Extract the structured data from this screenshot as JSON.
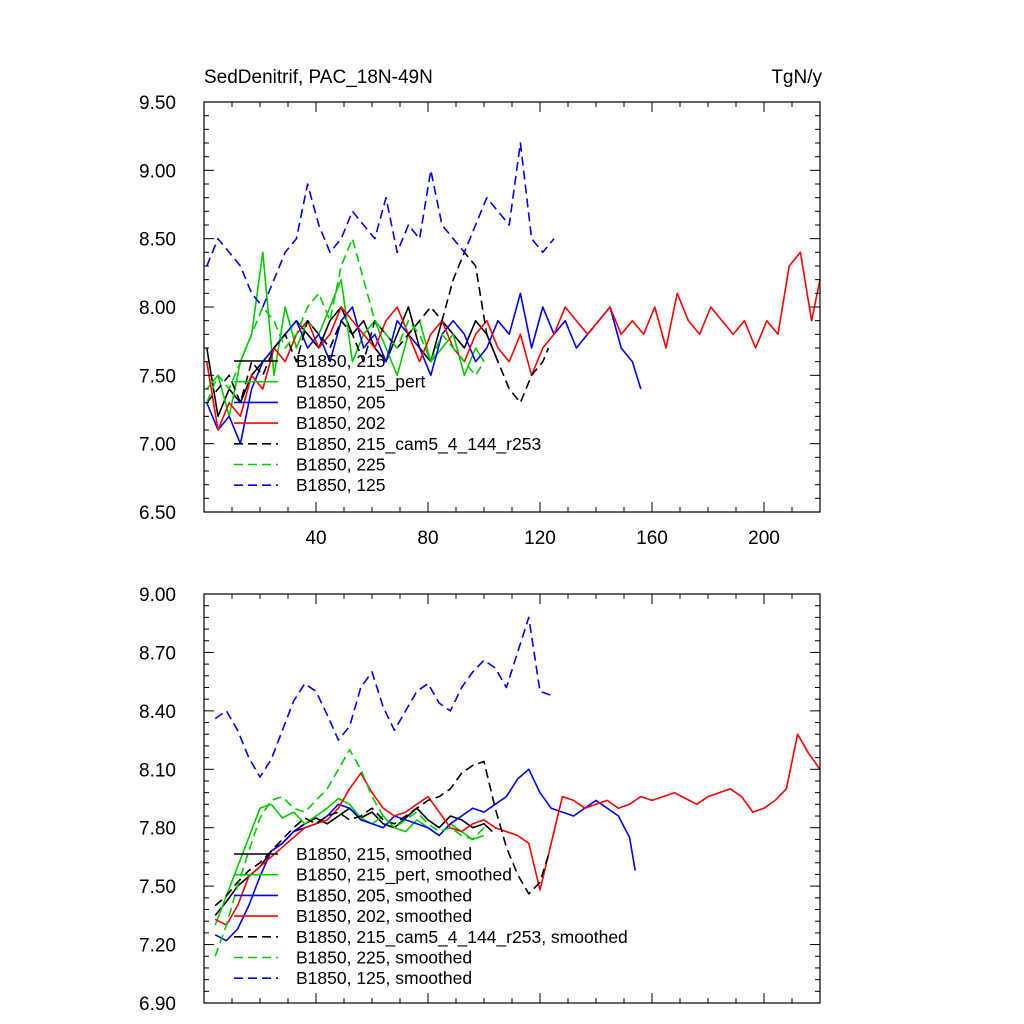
{
  "chart_data": [
    {
      "type": "line",
      "title_left": "SedDenitrif, PAC_18N-49N",
      "title_right": "TgN/y",
      "xlim": [
        0,
        220
      ],
      "ylim": [
        6.5,
        9.5
      ],
      "xticks": [
        40,
        80,
        120,
        160,
        200
      ],
      "xtick_labels": [
        "40",
        "80",
        "120",
        "160",
        "200"
      ],
      "yticks": [
        6.5,
        7.0,
        7.5,
        8.0,
        8.5,
        9.0,
        9.5
      ],
      "ytick_labels": [
        "6.50",
        "7.00",
        "7.50",
        "8.00",
        "8.50",
        "9.00",
        "9.50"
      ],
      "legend_placement": "lower-left",
      "series": [
        {
          "name": "B1850, 215",
          "color": "#000000",
          "dash": "solid",
          "x": [
            1,
            5,
            9,
            13,
            17,
            21,
            25,
            29,
            33,
            37,
            41,
            45,
            49,
            53,
            57,
            61,
            65,
            69,
            73,
            77,
            81,
            85,
            89,
            93,
            97,
            101,
            105
          ],
          "y": [
            7.7,
            7.2,
            7.4,
            7.3,
            7.5,
            7.6,
            7.7,
            7.8,
            7.9,
            7.8,
            7.7,
            7.9,
            8.0,
            7.8,
            7.9,
            7.7,
            7.6,
            7.8,
            8.0,
            7.7,
            7.6,
            7.9,
            7.8,
            7.7,
            7.9,
            7.8,
            7.6
          ]
        },
        {
          "name": "B1850, 215_pert",
          "color": "#00cc00",
          "dash": "solid",
          "x": [
            1,
            5,
            9,
            13,
            17,
            21,
            25,
            29,
            33,
            37,
            41,
            45,
            49,
            53,
            57,
            61,
            65,
            69,
            73,
            77,
            81,
            85,
            89,
            93,
            97,
            100
          ],
          "y": [
            7.4,
            7.5,
            7.2,
            7.6,
            7.8,
            8.4,
            7.5,
            8.0,
            7.7,
            7.9,
            7.8,
            8.0,
            8.2,
            7.6,
            7.8,
            7.9,
            7.7,
            7.5,
            7.8,
            7.9,
            7.6,
            7.7,
            7.8,
            7.5,
            7.7,
            7.6
          ]
        },
        {
          "name": "B1850, 205",
          "color": "#0000ff",
          "dash": "solid",
          "x": [
            1,
            5,
            9,
            13,
            17,
            21,
            25,
            29,
            33,
            37,
            41,
            45,
            49,
            53,
            57,
            61,
            65,
            69,
            73,
            77,
            81,
            85,
            89,
            93,
            97,
            101,
            105,
            109,
            113,
            117,
            121,
            125,
            129,
            133,
            137,
            141,
            145,
            149,
            153,
            156
          ],
          "y": [
            7.3,
            7.1,
            7.2,
            7.0,
            7.4,
            7.6,
            7.7,
            7.8,
            7.9,
            7.7,
            7.8,
            7.6,
            7.9,
            8.0,
            7.7,
            7.8,
            7.6,
            7.9,
            7.8,
            7.7,
            7.5,
            7.8,
            7.9,
            7.8,
            7.6,
            7.7,
            7.9,
            7.8,
            8.1,
            7.7,
            8.0,
            7.8,
            7.9,
            7.7,
            7.8,
            7.9,
            8.0,
            7.7,
            7.6,
            7.4
          ]
        },
        {
          "name": "B1850, 202",
          "color": "#ff0000",
          "dash": "solid",
          "x": [
            1,
            5,
            9,
            13,
            17,
            21,
            25,
            29,
            33,
            37,
            41,
            45,
            49,
            53,
            57,
            61,
            65,
            69,
            73,
            77,
            81,
            85,
            89,
            93,
            97,
            101,
            105,
            109,
            113,
            117,
            121,
            125,
            129,
            133,
            137,
            141,
            145,
            149,
            153,
            157,
            161,
            165,
            169,
            173,
            177,
            181,
            185,
            189,
            193,
            197,
            201,
            205,
            209,
            213,
            217,
            220
          ],
          "y": [
            7.6,
            7.1,
            7.3,
            7.2,
            7.5,
            7.4,
            7.7,
            7.6,
            7.8,
            7.9,
            7.7,
            7.8,
            8.0,
            7.9,
            7.8,
            7.7,
            7.9,
            8.0,
            7.8,
            7.6,
            7.8,
            7.9,
            7.7,
            7.6,
            7.8,
            7.9,
            7.7,
            7.6,
            7.8,
            7.5,
            7.7,
            7.8,
            8.0,
            7.9,
            7.8,
            7.9,
            8.0,
            7.8,
            7.9,
            7.8,
            8.0,
            7.7,
            8.1,
            7.9,
            7.8,
            8.0,
            7.9,
            7.8,
            7.9,
            7.7,
            7.9,
            7.8,
            8.3,
            8.4,
            7.9,
            8.2
          ]
        },
        {
          "name": "B1850, 215_cam5_4_144_r253",
          "color": "#000000",
          "dash": "dashed",
          "x": [
            1,
            5,
            9,
            13,
            17,
            21,
            25,
            29,
            33,
            37,
            41,
            45,
            49,
            53,
            57,
            61,
            65,
            69,
            73,
            77,
            81,
            85,
            89,
            93,
            97,
            101,
            105,
            109,
            113,
            117,
            121,
            123
          ],
          "y": [
            7.3,
            7.4,
            7.5,
            7.3,
            7.6,
            7.5,
            7.7,
            7.8,
            7.6,
            7.9,
            7.8,
            7.7,
            7.9,
            7.8,
            7.6,
            7.9,
            7.8,
            7.7,
            7.8,
            7.9,
            8.0,
            7.9,
            8.2,
            8.4,
            8.3,
            7.8,
            7.6,
            7.4,
            7.3,
            7.5,
            7.6,
            7.7
          ]
        },
        {
          "name": "B1850, 225",
          "color": "#00cc00",
          "dash": "dashed",
          "x": [
            1,
            5,
            9,
            13,
            17,
            21,
            25,
            29,
            33,
            37,
            41,
            45,
            49,
            53,
            57,
            61,
            65,
            69,
            73,
            77,
            81,
            85,
            89,
            93,
            97,
            100
          ],
          "y": [
            7.3,
            7.5,
            7.4,
            7.6,
            7.8,
            8.0,
            7.9,
            7.7,
            7.8,
            8.0,
            8.1,
            7.9,
            8.3,
            8.5,
            8.2,
            7.9,
            7.8,
            7.7,
            7.9,
            7.8,
            7.6,
            7.8,
            7.7,
            7.6,
            7.5,
            7.6
          ]
        },
        {
          "name": "B1850, 125",
          "color": "#0000ff",
          "dash": "dashed",
          "x": [
            1,
            5,
            9,
            13,
            17,
            21,
            25,
            29,
            33,
            37,
            41,
            45,
            49,
            53,
            57,
            61,
            65,
            69,
            73,
            77,
            81,
            85,
            89,
            93,
            97,
            101,
            105,
            109,
            113,
            117,
            121,
            125
          ],
          "y": [
            8.3,
            8.5,
            8.4,
            8.3,
            8.1,
            8.0,
            8.2,
            8.4,
            8.5,
            8.9,
            8.6,
            8.4,
            8.5,
            8.7,
            8.6,
            8.5,
            8.8,
            8.4,
            8.6,
            8.5,
            9.0,
            8.6,
            8.5,
            8.4,
            8.6,
            8.8,
            8.7,
            8.6,
            9.2,
            8.5,
            8.4,
            8.5
          ]
        }
      ]
    },
    {
      "type": "line",
      "xlim": [
        0,
        220
      ],
      "ylim": [
        6.9,
        9.0
      ],
      "xticks": [
        40,
        80,
        120,
        160,
        200
      ],
      "yticks": [
        6.9,
        7.2,
        7.5,
        7.8,
        8.1,
        8.4,
        8.7,
        9.0
      ],
      "ytick_labels": [
        "6.90",
        "7.20",
        "7.50",
        "7.80",
        "8.10",
        "8.40",
        "8.70",
        "9.00"
      ],
      "legend_placement": "lower-left",
      "series": [
        {
          "name": "B1850, 215, smoothed",
          "color": "#000000",
          "dash": "solid",
          "x": [
            4,
            8,
            12,
            16,
            20,
            24,
            28,
            32,
            36,
            40,
            44,
            48,
            52,
            56,
            60,
            64,
            68,
            72,
            76,
            80,
            84,
            88,
            92,
            96,
            100,
            103
          ],
          "y": [
            7.35,
            7.42,
            7.5,
            7.55,
            7.6,
            7.68,
            7.72,
            7.78,
            7.82,
            7.85,
            7.82,
            7.86,
            7.9,
            7.85,
            7.88,
            7.82,
            7.8,
            7.85,
            7.9,
            7.84,
            7.8,
            7.86,
            7.84,
            7.8,
            7.82,
            7.78
          ]
        },
        {
          "name": "B1850, 215_pert, smoothed",
          "color": "#00cc00",
          "dash": "solid",
          "x": [
            4,
            8,
            12,
            16,
            20,
            24,
            28,
            32,
            36,
            40,
            44,
            48,
            52,
            56,
            60,
            64,
            68,
            72,
            76,
            80,
            84,
            88,
            92,
            96,
            100
          ],
          "y": [
            7.3,
            7.45,
            7.6,
            7.75,
            7.9,
            7.92,
            7.85,
            7.88,
            7.82,
            7.86,
            7.9,
            7.95,
            7.92,
            7.85,
            7.82,
            7.86,
            7.8,
            7.78,
            7.84,
            7.8,
            7.76,
            7.82,
            7.78,
            7.74,
            7.76
          ]
        },
        {
          "name": "B1850, 205, smoothed",
          "color": "#0000ff",
          "dash": "solid",
          "x": [
            4,
            8,
            12,
            16,
            20,
            24,
            28,
            32,
            36,
            40,
            44,
            48,
            52,
            56,
            60,
            64,
            68,
            72,
            76,
            80,
            84,
            88,
            92,
            96,
            100,
            104,
            108,
            112,
            116,
            120,
            124,
            128,
            132,
            136,
            140,
            144,
            148,
            152,
            154
          ],
          "y": [
            7.25,
            7.22,
            7.28,
            7.4,
            7.55,
            7.68,
            7.72,
            7.78,
            7.8,
            7.82,
            7.86,
            7.92,
            7.9,
            7.84,
            7.82,
            7.8,
            7.86,
            7.84,
            7.82,
            7.8,
            7.76,
            7.82,
            7.86,
            7.9,
            7.88,
            7.92,
            7.96,
            8.05,
            8.1,
            7.98,
            7.9,
            7.88,
            7.86,
            7.9,
            7.94,
            7.9,
            7.86,
            7.75,
            7.58
          ]
        },
        {
          "name": "B1850, 202, smoothed",
          "color": "#ff0000",
          "dash": "solid",
          "x": [
            4,
            8,
            12,
            16,
            20,
            24,
            28,
            32,
            36,
            40,
            44,
            48,
            52,
            56,
            60,
            64,
            68,
            72,
            76,
            80,
            84,
            88,
            92,
            96,
            100,
            104,
            108,
            112,
            116,
            120,
            124,
            128,
            132,
            136,
            140,
            144,
            148,
            152,
            156,
            160,
            164,
            168,
            172,
            176,
            180,
            184,
            188,
            192,
            196,
            200,
            204,
            208,
            212,
            216,
            220
          ],
          "y": [
            7.33,
            7.3,
            7.4,
            7.55,
            7.6,
            7.65,
            7.7,
            7.75,
            7.8,
            7.82,
            7.84,
            7.9,
            8.0,
            8.08,
            7.98,
            7.9,
            7.86,
            7.88,
            7.92,
            7.96,
            7.88,
            7.8,
            7.78,
            7.82,
            7.84,
            7.8,
            7.78,
            7.76,
            7.72,
            7.48,
            7.72,
            7.96,
            7.94,
            7.9,
            7.92,
            7.94,
            7.9,
            7.92,
            7.96,
            7.94,
            7.96,
            7.98,
            7.95,
            7.92,
            7.96,
            7.98,
            8.0,
            7.96,
            7.88,
            7.9,
            7.94,
            8.0,
            8.28,
            8.18,
            8.1
          ]
        },
        {
          "name": "B1850, 215_cam5_4_144_r253, smoothed",
          "color": "#000000",
          "dash": "dashed",
          "x": [
            4,
            8,
            12,
            16,
            20,
            24,
            28,
            32,
            36,
            40,
            44,
            48,
            52,
            56,
            60,
            64,
            68,
            72,
            76,
            80,
            84,
            88,
            92,
            96,
            100,
            104,
            108,
            112,
            116,
            120,
            123
          ],
          "y": [
            7.4,
            7.45,
            7.52,
            7.58,
            7.62,
            7.68,
            7.74,
            7.8,
            7.85,
            7.82,
            7.86,
            7.88,
            7.84,
            7.86,
            7.9,
            7.84,
            7.82,
            7.86,
            7.9,
            7.94,
            7.96,
            8.0,
            8.08,
            8.12,
            8.14,
            7.9,
            7.7,
            7.56,
            7.46,
            7.52,
            7.66
          ]
        },
        {
          "name": "B1850, 225, smoothed",
          "color": "#00cc00",
          "dash": "dashed",
          "x": [
            4,
            8,
            12,
            16,
            20,
            24,
            28,
            32,
            36,
            40,
            44,
            48,
            52,
            56,
            60,
            64,
            68,
            72,
            76,
            80,
            84,
            88,
            92,
            96,
            100
          ],
          "y": [
            7.14,
            7.3,
            7.5,
            7.68,
            7.85,
            7.94,
            7.96,
            7.9,
            7.88,
            7.94,
            8.0,
            8.1,
            8.2,
            8.1,
            7.96,
            7.86,
            7.8,
            7.84,
            7.88,
            7.82,
            7.78,
            7.8,
            7.76,
            7.74,
            7.8
          ]
        },
        {
          "name": "B1850, 125, smoothed",
          "color": "#0000ff",
          "dash": "dashed",
          "x": [
            4,
            8,
            12,
            16,
            20,
            24,
            28,
            32,
            36,
            40,
            44,
            48,
            52,
            56,
            60,
            64,
            68,
            72,
            76,
            80,
            84,
            88,
            92,
            96,
            100,
            104,
            108,
            112,
            116,
            120,
            124
          ],
          "y": [
            8.36,
            8.4,
            8.3,
            8.16,
            8.06,
            8.15,
            8.3,
            8.45,
            8.54,
            8.5,
            8.38,
            8.25,
            8.32,
            8.52,
            8.6,
            8.42,
            8.3,
            8.4,
            8.5,
            8.54,
            8.44,
            8.4,
            8.52,
            8.6,
            8.66,
            8.62,
            8.52,
            8.7,
            8.88,
            8.5,
            8.48
          ]
        }
      ]
    }
  ]
}
